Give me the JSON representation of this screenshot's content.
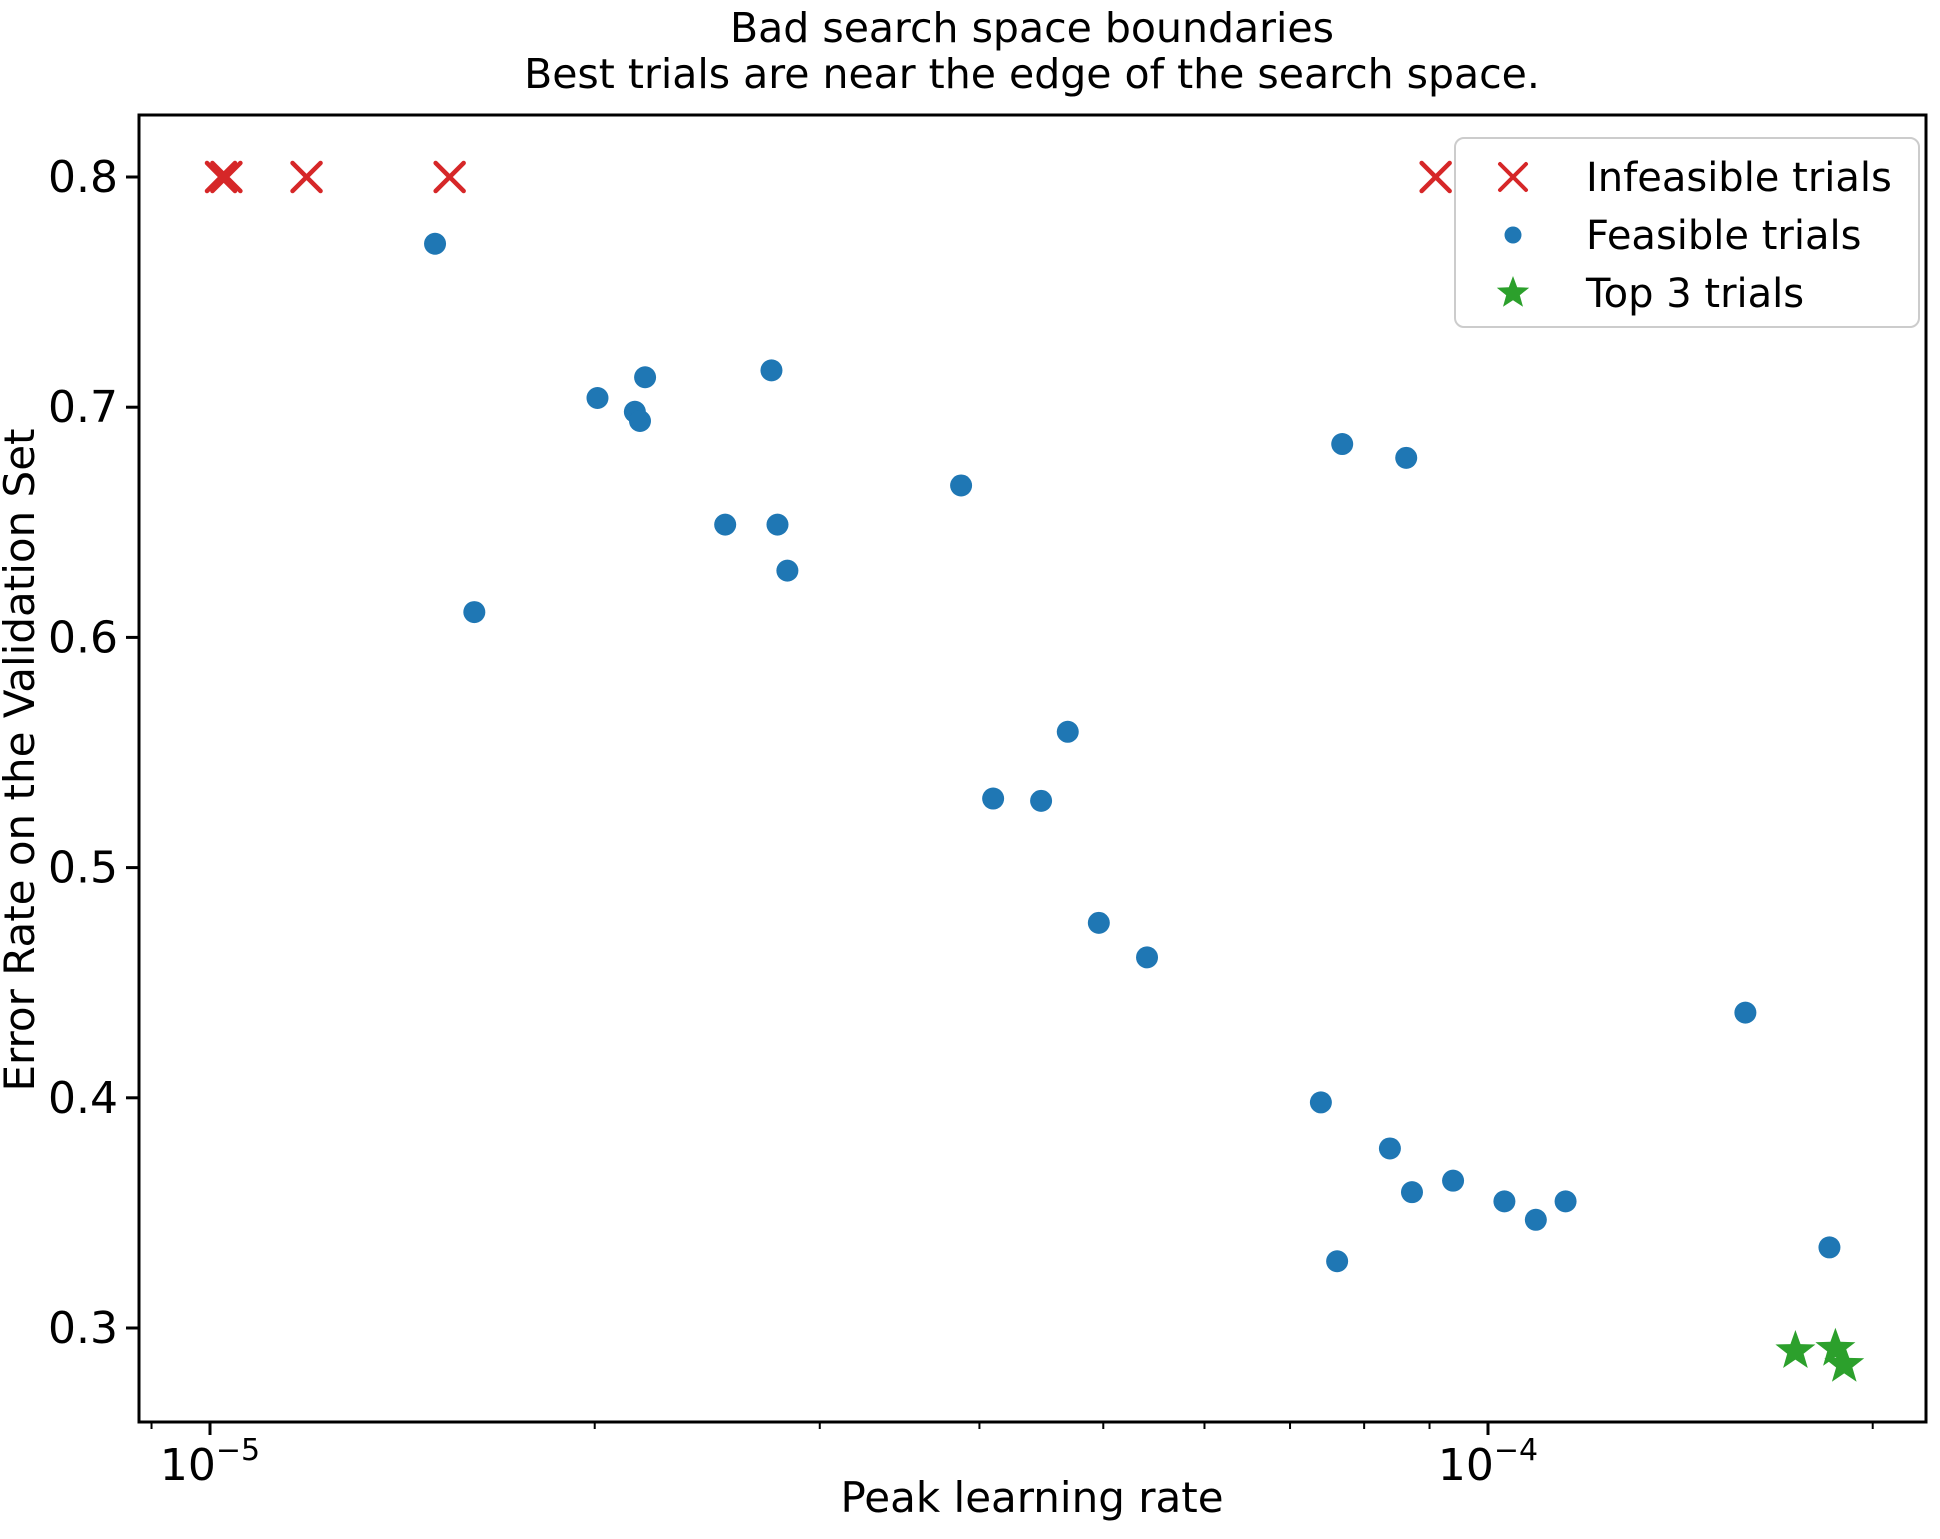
{
  "title": {
    "line1": "Bad search space boundaries",
    "line2": "Best trials are near the edge of the search space."
  },
  "axes": {
    "xlabel": "Peak learning rate",
    "ylabel": "Error Rate on the Validation Set"
  },
  "colors": {
    "infeasible": "#d62728",
    "feasible": "#1f77b4",
    "top3": "#2ca02c",
    "legend_border": "#cccccc",
    "text": "#000000"
  },
  "chart_data": {
    "type": "scatter",
    "title": "Bad search space boundaries\nBest trials are near the edge of the search space.",
    "xlabel": "Peak learning rate",
    "ylabel": "Error Rate on the Validation Set",
    "x_scale": "log",
    "y_scale": "linear",
    "xlim": [
      8.8e-06,
      0.00022
    ],
    "ylim": [
      0.259,
      0.827
    ],
    "grid": false,
    "legend_position": "upper right",
    "x_major_ticks": [
      {
        "value": 1e-05,
        "base": "10",
        "exp": "−5"
      },
      {
        "value": 0.0001,
        "base": "10",
        "exp": "−4"
      }
    ],
    "x_minor_ticks": [
      9e-06,
      2e-05,
      3e-05,
      4e-05,
      5e-05,
      6e-05,
      7e-05,
      8e-05,
      9e-05,
      0.0002
    ],
    "y_ticks": [
      0.3,
      0.4,
      0.5,
      0.6,
      0.7,
      0.8
    ],
    "series": [
      {
        "name": "Infeasible trials",
        "marker": "x",
        "color": "#d62728",
        "points": [
          [
            1.02e-05,
            0.8
          ],
          [
            1.03e-05,
            0.8
          ],
          [
            1.19e-05,
            0.8
          ],
          [
            1.54e-05,
            0.8
          ],
          [
            9.1e-05,
            0.8
          ]
        ]
      },
      {
        "name": "Feasible trials",
        "marker": "circle",
        "color": "#1f77b4",
        "points": [
          [
            1.5e-05,
            0.771
          ],
          [
            2.01e-05,
            0.704
          ],
          [
            2.19e-05,
            0.713
          ],
          [
            2.15e-05,
            0.698
          ],
          [
            2.17e-05,
            0.694
          ],
          [
            2.75e-05,
            0.716
          ],
          [
            1.61e-05,
            0.611
          ],
          [
            2.53e-05,
            0.649
          ],
          [
            2.78e-05,
            0.649
          ],
          [
            2.83e-05,
            0.629
          ],
          [
            3.87e-05,
            0.666
          ],
          [
            4.69e-05,
            0.559
          ],
          [
            4.1e-05,
            0.53
          ],
          [
            4.47e-05,
            0.529
          ],
          [
            4.96e-05,
            0.476
          ],
          [
            5.41e-05,
            0.461
          ],
          [
            7.69e-05,
            0.684
          ],
          [
            8.63e-05,
            0.678
          ],
          [
            7.4e-05,
            0.398
          ],
          [
            8.38e-05,
            0.378
          ],
          [
            8.72e-05,
            0.359
          ],
          [
            9.39e-05,
            0.364
          ],
          [
            0.000103,
            0.355
          ],
          [
            0.000109,
            0.347
          ],
          [
            0.000115,
            0.355
          ],
          [
            7.62e-05,
            0.329
          ],
          [
            0.000159,
            0.437
          ],
          [
            0.000185,
            0.335
          ]
        ]
      },
      {
        "name": "Top 3 trials",
        "marker": "star",
        "color": "#2ca02c",
        "points": [
          [
            0.000174,
            0.29
          ],
          [
            0.000187,
            0.291
          ],
          [
            0.00019,
            0.284
          ]
        ]
      }
    ]
  }
}
